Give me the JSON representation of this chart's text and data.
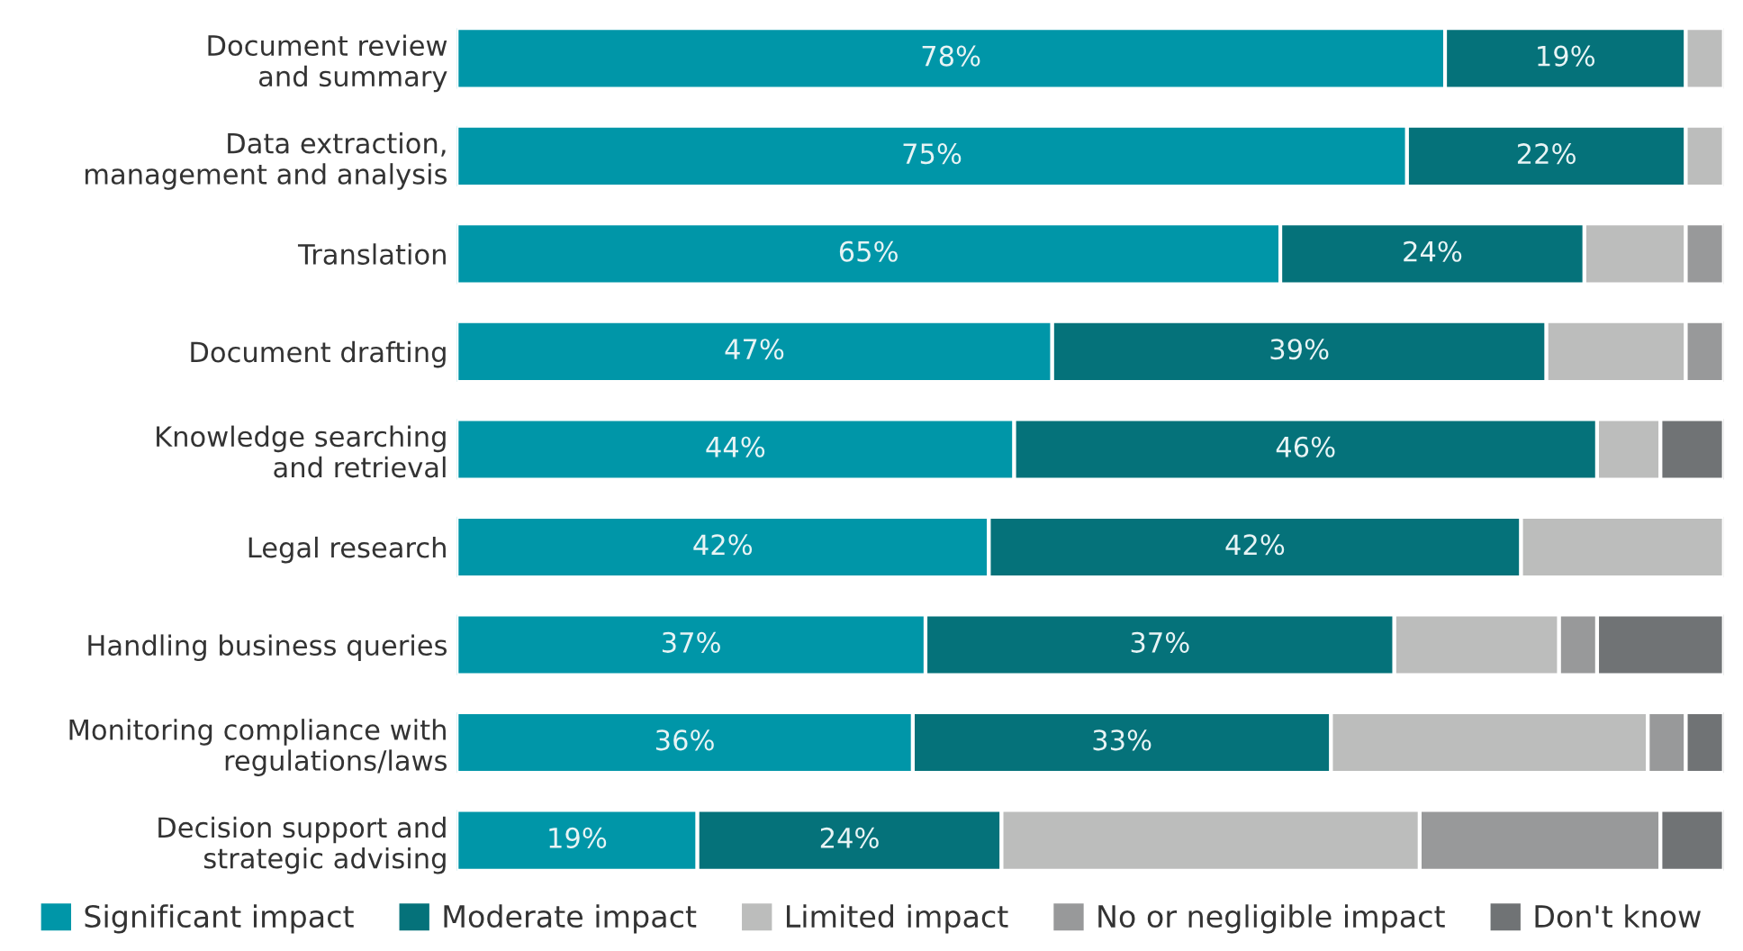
{
  "chart_data": {
    "type": "bar",
    "orientation": "horizontal",
    "stacked": true,
    "legend": "bottom",
    "grid": false,
    "categories": [
      "Document review\nand summary",
      "Data extraction,\nmanagement and analysis",
      "Translation",
      "Document drafting",
      "Knowledge searching\nand retrieval",
      "Legal research",
      "Handling business queries",
      "Monitoring compliance with\nregulations/laws",
      "Decision support and\nstrategic advising"
    ],
    "series": [
      {
        "name": "Significant impact",
        "color": "#0096a8",
        "values": [
          78,
          75,
          65,
          47,
          44,
          42,
          37,
          36,
          19
        ],
        "value_labels": [
          "78%",
          "75%",
          "65%",
          "47%",
          "44%",
          "42%",
          "37%",
          "36%",
          "19%"
        ]
      },
      {
        "name": "Moderate impact",
        "color": "#05727a",
        "values": [
          19,
          22,
          24,
          39,
          46,
          42,
          37,
          33,
          24
        ],
        "value_labels": [
          "19%",
          "22%",
          "24%",
          "39%",
          "46%",
          "42%",
          "37%",
          "33%",
          "24%"
        ]
      },
      {
        "name": "Limited impact",
        "color": "#bcbdbc",
        "values": [
          3,
          3,
          8,
          11,
          5,
          16,
          13,
          25,
          33
        ]
      },
      {
        "name": "No or negligible impact",
        "color": "#98999a",
        "values": [
          null,
          null,
          3,
          3,
          null,
          null,
          3,
          3,
          19
        ]
      },
      {
        "name": "Don't know",
        "color": "#707375",
        "values": [
          null,
          null,
          null,
          null,
          5,
          null,
          10,
          3,
          5
        ]
      }
    ]
  }
}
